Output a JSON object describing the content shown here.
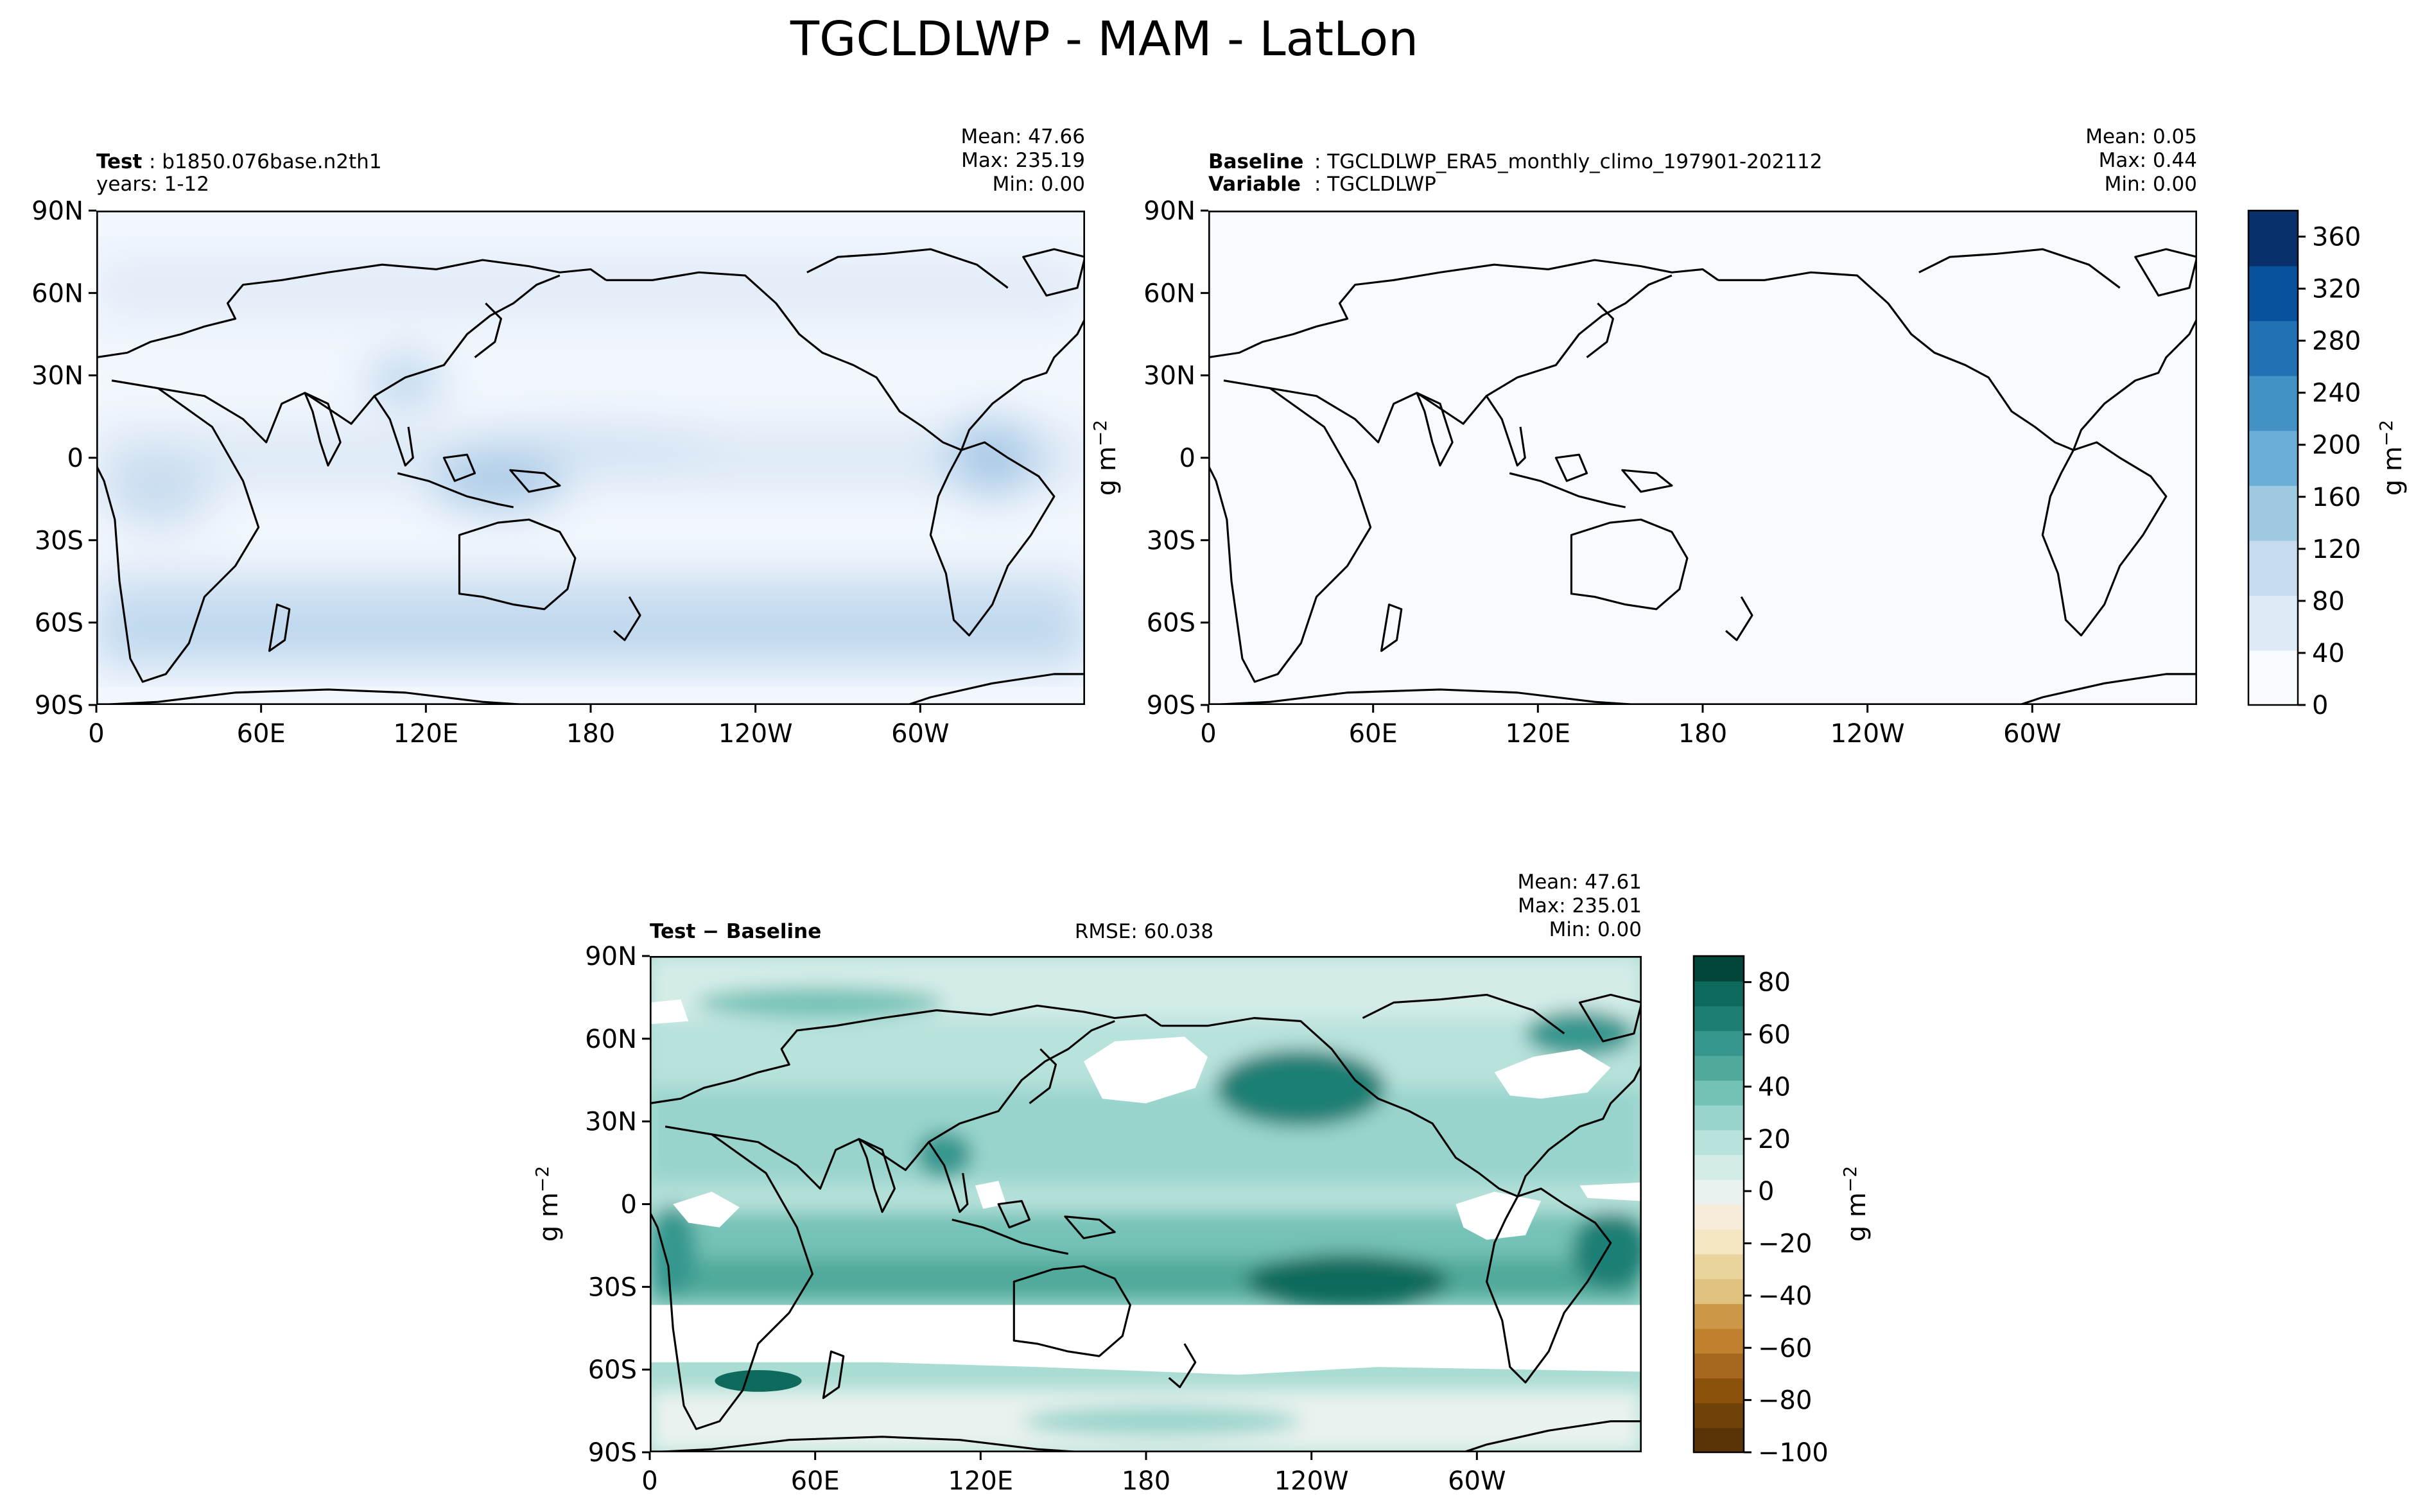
{
  "title": "TGCLDLWP - MAM - LatLon",
  "units_label": "g m",
  "units_exp": "−2",
  "axes": {
    "lat_ticks": [
      "90N",
      "60N",
      "30N",
      "0",
      "30S",
      "60S",
      "90S"
    ],
    "lon_ticks": [
      "0",
      "60E",
      "120E",
      "180",
      "120W",
      "60W"
    ],
    "lat_range": [
      -90,
      90
    ],
    "lon_range": [
      0,
      360
    ],
    "grid": false
  },
  "panels": {
    "test": {
      "label_bold": "Test",
      "label_text": ": b1850.076base.n2th1",
      "line2": "years: 1-12",
      "stats": [
        "Mean: 47.66",
        "Max: 235.19",
        "Min:  0.00"
      ]
    },
    "baseline": {
      "label_bold": "Baseline",
      "label_text": ": TGCLDLWP_ERA5_monthly_climo_197901-202112",
      "line2_bold": "Variable",
      "line2_text": ": TGCLDLWP",
      "stats": [
        "Mean:  0.05",
        "Max:  0.44",
        "Min:  0.00"
      ]
    },
    "diff": {
      "label": "Test − Baseline",
      "rmse": "RMSE: 60.038",
      "stats": [
        "Mean: 47.61",
        "Max: 235.01",
        "Min:  0.00"
      ]
    }
  },
  "colorbars": {
    "main": {
      "ticks": [
        "0",
        "40",
        "80",
        "120",
        "160",
        "200",
        "240",
        "280",
        "320",
        "360"
      ],
      "range": [
        0,
        380
      ],
      "colors": [
        "#f7fbff",
        "#deebf7",
        "#c6dbef",
        "#9ecae1",
        "#6baed6",
        "#4292c6",
        "#2171b5",
        "#08519c",
        "#08306b"
      ]
    },
    "diff": {
      "ticks": [
        "−100",
        "−80",
        "−60",
        "−40",
        "−20",
        "0",
        "20",
        "40",
        "60",
        "80"
      ],
      "range": [
        -100,
        90
      ],
      "colors": [
        "#5a3307",
        "#6f420a",
        "#8c510a",
        "#a6671e",
        "#bf812d",
        "#cc9848",
        "#dfc27d",
        "#e9d49d",
        "#f3e6c0",
        "#f6ecd9",
        "#e9f2ef",
        "#d4ece8",
        "#b8e2dc",
        "#98d4cc",
        "#74c2b6",
        "#50a99a",
        "#35978f",
        "#1d7f74",
        "#0d6a5c",
        "#01453b"
      ]
    }
  },
  "chart_data": [
    {
      "type": "heatmap",
      "name": "Test",
      "x_axis": "longitude",
      "y_axis": "latitude",
      "xlim": [
        0,
        360
      ],
      "ylim": [
        -90,
        90
      ],
      "units": "g m−2",
      "stats": {
        "mean": 47.66,
        "max": 235.19,
        "min": 0.0
      }
    },
    {
      "type": "heatmap",
      "name": "Baseline",
      "x_axis": "longitude",
      "y_axis": "latitude",
      "xlim": [
        0,
        360
      ],
      "ylim": [
        -90,
        90
      ],
      "units": "g m−2",
      "stats": {
        "mean": 0.05,
        "max": 0.44,
        "min": 0.0
      }
    },
    {
      "type": "heatmap",
      "name": "Test − Baseline",
      "x_axis": "longitude",
      "y_axis": "latitude",
      "xlim": [
        0,
        360
      ],
      "ylim": [
        -90,
        90
      ],
      "units": "g m−2",
      "rmse": 60.038,
      "stats": {
        "mean": 47.61,
        "max": 235.01,
        "min": 0.0
      }
    }
  ]
}
